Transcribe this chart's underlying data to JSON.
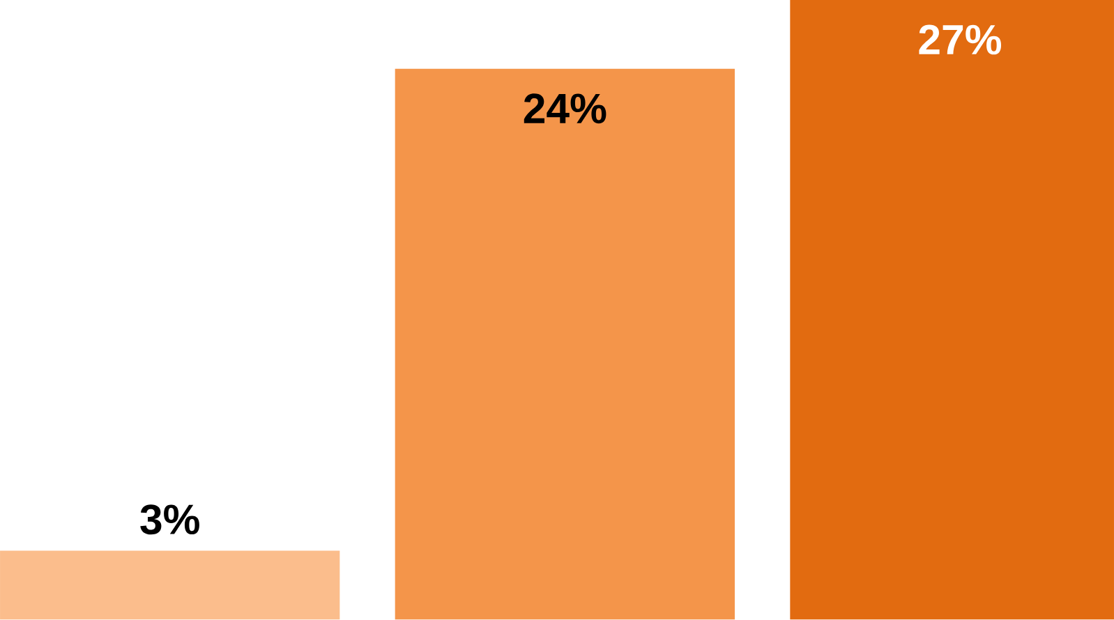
{
  "chart_data": {
    "type": "bar",
    "categories": [
      null,
      null,
      null
    ],
    "values": [
      3,
      24,
      27
    ],
    "colors": [
      "#fbbd8c",
      "#f4954a",
      "#e26b10"
    ],
    "value_labels": [
      "3%",
      "24%",
      "27%"
    ]
  }
}
